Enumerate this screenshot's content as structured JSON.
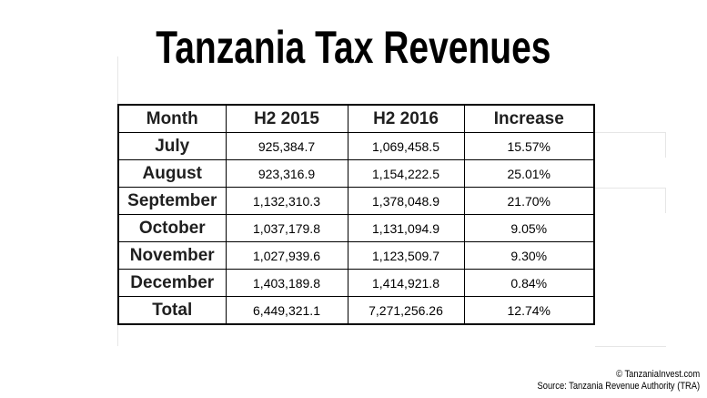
{
  "title": "Tanzania Tax Revenues",
  "chart_data": {
    "type": "table",
    "title": "Tanzania Tax Revenues",
    "columns": [
      "Month",
      "H2 2015",
      "H2 2016",
      "Increase"
    ],
    "rows": [
      [
        "July",
        "925,384.7",
        "1,069,458.5",
        "15.57%"
      ],
      [
        "August",
        "923,316.9",
        "1,154,222.5",
        "25.01%"
      ],
      [
        "September",
        "1,132,310.3",
        "1,378,048.9",
        "21.70%"
      ],
      [
        "October",
        "1,037,179.8",
        "1,131,094.9",
        "9.05%"
      ],
      [
        "November",
        "1,027,939.6",
        "1,123,509.7",
        "9.30%"
      ],
      [
        "December",
        "1,403,189.8",
        "1,414,921.8",
        "0.84%"
      ],
      [
        "Total",
        "6,449,321.1",
        "7,271,256.26",
        "12.74%"
      ]
    ]
  },
  "credits": {
    "copyright": "© TanzaniaInvest.com",
    "source": "Source: Tanzania Revenue Authority (TRA)"
  }
}
